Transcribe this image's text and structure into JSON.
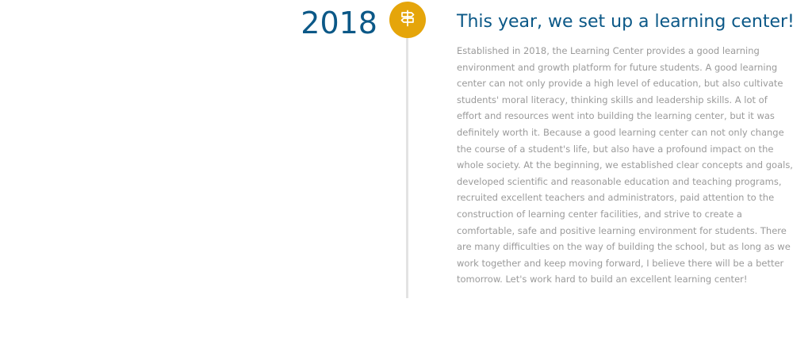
{
  "timeline": {
    "entry": {
      "year": "2018",
      "icon": "signpost-icon",
      "badge_color": "#e5a50a",
      "title": "This year, we set up a learning center!",
      "body": "Established in 2018, the Learning Center provides a good learning environment and growth platform for future students. A good learning center can not only provide a high level of education, but also cultivate students' moral literacy, thinking skills and leadership skills. A lot of effort and resources went into building the learning center, but it was definitely worth it. Because a good learning center can not only change the course of a student's life, but also have a profound impact on the whole society. At the beginning, we established clear concepts and goals, developed scientific and reasonable education and teaching programs, recruited excellent teachers and administrators, paid attention to the construction of learning center facilities, and strive to create a comfortable, safe and positive learning environment for students. There are many difficulties on the way of building the school, but as long as we work together and keep moving forward, I believe there will be a better tomorrow. Let's work hard to build an excellent learning center!"
    }
  },
  "colors": {
    "heading": "#0b5887",
    "body_text": "#9a9a9a",
    "accent": "#e5a50a",
    "timeline_line": "#e3e3e3"
  }
}
